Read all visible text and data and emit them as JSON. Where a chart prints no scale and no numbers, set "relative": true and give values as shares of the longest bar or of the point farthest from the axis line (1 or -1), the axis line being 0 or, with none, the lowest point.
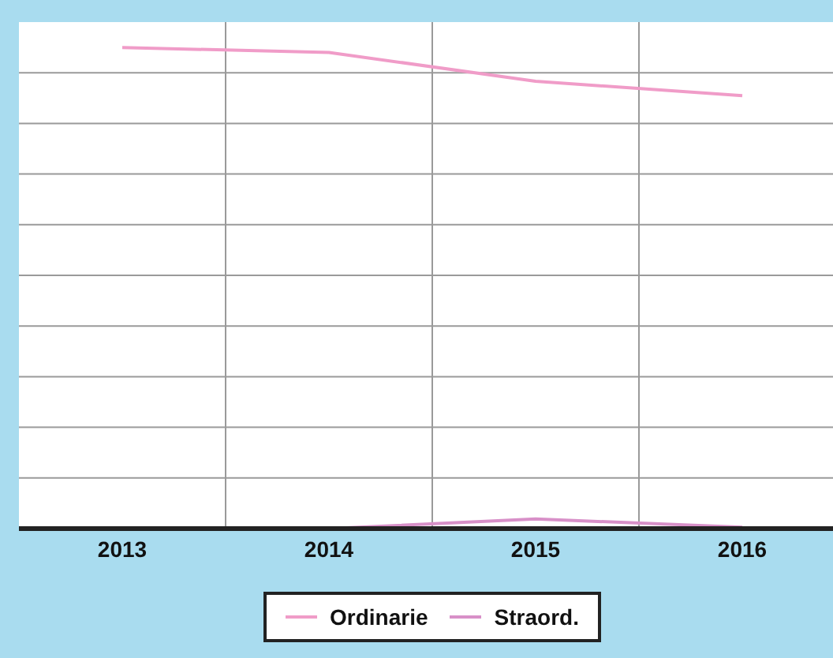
{
  "chart_data": {
    "type": "line",
    "relative": true,
    "categories": [
      "2013",
      "2014",
      "2015",
      "2016"
    ],
    "series": [
      {
        "name": "Ordinarie",
        "color": "#f09cc8",
        "values": [
          1,
          0.99,
          0.93,
          0.9
        ]
      },
      {
        "name": "Straord.",
        "color": "#d890c8",
        "values": [
          null,
          0,
          0.02,
          0.003
        ]
      }
    ],
    "grid": true,
    "legend": "bottom",
    "marker": "none",
    "line_style": "solid"
  }
}
